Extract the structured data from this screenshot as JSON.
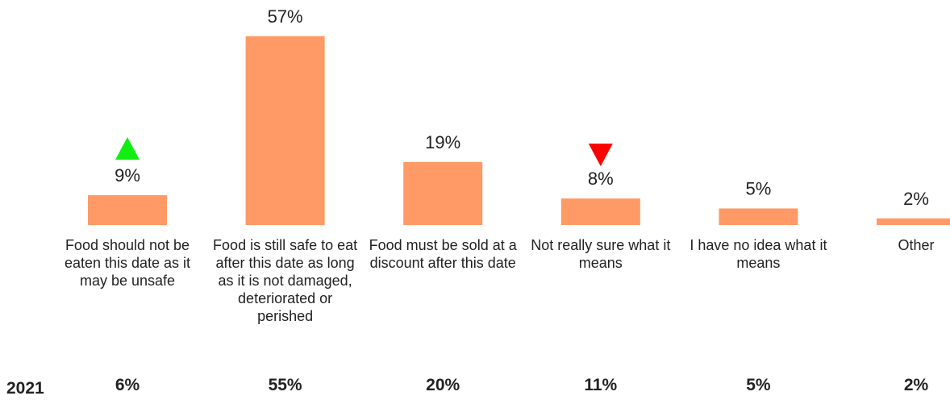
{
  "chart_data": {
    "type": "bar",
    "categories": [
      "Food should not be eaten this date as it may be unsafe",
      "Food is still safe to eat after this date as long as it is not damaged, deteriorated or perished",
      "Food must be sold at a discount after this date",
      "Not really sure what it means",
      "I have no idea what it means",
      "Other"
    ],
    "values": [
      9,
      57,
      19,
      8,
      5,
      2
    ],
    "value_labels": [
      "9%",
      "57%",
      "19%",
      "8%",
      "5%",
      "2%"
    ],
    "change_markers": [
      "up",
      null,
      null,
      "down",
      null,
      null
    ],
    "comparison": {
      "label": "2021",
      "values": [
        6,
        55,
        20,
        11,
        5,
        2
      ],
      "value_labels": [
        "6%",
        "55%",
        "20%",
        "11%",
        "5%",
        "2%"
      ]
    },
    "ylim": [
      0,
      57
    ],
    "grid": false,
    "legend": "none"
  },
  "colors": {
    "bar": "#ff9966",
    "up_marker": "#11ee11",
    "down_marker": "#ff0000",
    "text": "#222222"
  }
}
